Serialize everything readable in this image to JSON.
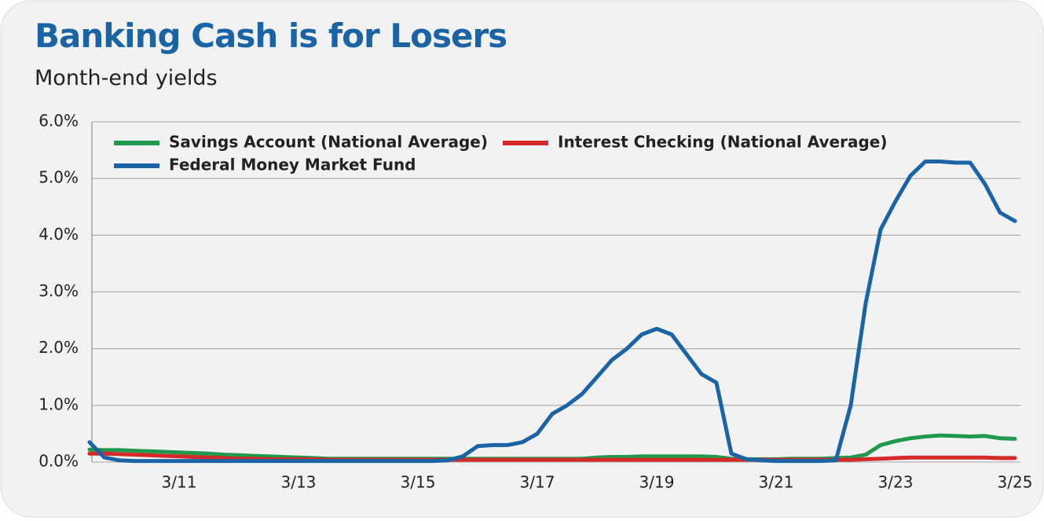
{
  "chart_data": {
    "type": "line",
    "title": "Banking Cash is for Losers",
    "subtitle": "Month-end yields",
    "categories": [
      null,
      null,
      null,
      null,
      null,
      null,
      "3/11",
      null,
      null,
      null,
      null,
      null,
      null,
      null,
      "3/13",
      null,
      null,
      null,
      null,
      null,
      null,
      null,
      "3/15",
      null,
      null,
      null,
      null,
      null,
      null,
      null,
      "3/17",
      null,
      null,
      null,
      null,
      null,
      null,
      null,
      "3/19",
      null,
      null,
      null,
      null,
      null,
      null,
      null,
      "3/21",
      null,
      null,
      null,
      null,
      null,
      null,
      null,
      "3/23",
      null,
      null,
      null,
      null,
      null,
      null,
      null,
      "3/25"
    ],
    "series": [
      {
        "name": "Savings Account (National Average)",
        "color": "#1f9a4c",
        "values": [
          0.22,
          0.21,
          0.21,
          0.2,
          0.19,
          0.18,
          0.17,
          0.16,
          0.15,
          0.13,
          0.12,
          0.11,
          0.1,
          0.09,
          0.08,
          0.07,
          0.06,
          0.06,
          0.06,
          0.06,
          0.06,
          0.06,
          0.06,
          0.06,
          0.06,
          0.06,
          0.06,
          0.06,
          0.06,
          0.06,
          0.06,
          0.06,
          0.06,
          0.06,
          0.08,
          0.09,
          0.09,
          0.1,
          0.1,
          0.1,
          0.1,
          0.1,
          0.09,
          0.06,
          0.05,
          0.05,
          0.05,
          0.06,
          0.06,
          0.06,
          0.07,
          0.08,
          0.13,
          0.3,
          0.37,
          0.42,
          0.45,
          0.47,
          0.46,
          0.45,
          0.46,
          0.42,
          0.41
        ]
      },
      {
        "name": "Interest Checking (National Average)",
        "color": "#d42a2a",
        "values": [
          0.15,
          0.15,
          0.14,
          0.13,
          0.12,
          0.11,
          0.1,
          0.09,
          0.08,
          0.07,
          0.06,
          0.06,
          0.05,
          0.05,
          0.05,
          0.05,
          0.04,
          0.04,
          0.04,
          0.04,
          0.04,
          0.04,
          0.04,
          0.04,
          0.04,
          0.04,
          0.04,
          0.04,
          0.04,
          0.04,
          0.04,
          0.04,
          0.04,
          0.04,
          0.04,
          0.04,
          0.04,
          0.04,
          0.04,
          0.04,
          0.04,
          0.04,
          0.04,
          0.04,
          0.04,
          0.04,
          0.04,
          0.04,
          0.04,
          0.04,
          0.04,
          0.04,
          0.05,
          0.06,
          0.07,
          0.08,
          0.08,
          0.08,
          0.08,
          0.08,
          0.08,
          0.07,
          0.07
        ]
      },
      {
        "name": "Federal Money Market Fund",
        "color": "#1a64a6",
        "values": [
          0.35,
          0.08,
          0.03,
          0.02,
          0.02,
          0.02,
          0.02,
          0.02,
          0.02,
          0.02,
          0.02,
          0.02,
          0.02,
          0.02,
          0.02,
          0.02,
          0.02,
          0.02,
          0.02,
          0.02,
          0.02,
          0.02,
          0.02,
          0.02,
          0.03,
          0.1,
          0.28,
          0.3,
          0.3,
          0.35,
          0.5,
          0.85,
          1.0,
          1.2,
          1.5,
          1.8,
          2.0,
          2.25,
          2.35,
          2.25,
          1.9,
          1.55,
          1.4,
          0.15,
          0.05,
          0.03,
          0.02,
          0.02,
          0.02,
          0.02,
          0.03,
          1.0,
          2.8,
          4.1,
          4.6,
          5.05,
          5.3,
          5.3,
          5.28,
          5.28,
          4.9,
          4.4,
          4.25
        ]
      }
    ],
    "ylim": [
      0,
      6
    ],
    "yticks": [
      {
        "value": 0,
        "label": "0.0%"
      },
      {
        "value": 1,
        "label": "1.0%"
      },
      {
        "value": 2,
        "label": "2.0%"
      },
      {
        "value": 3,
        "label": "3.0%"
      },
      {
        "value": 4,
        "label": "4.0%"
      },
      {
        "value": 5,
        "label": "5.0%"
      },
      {
        "value": 6,
        "label": "6.0%"
      }
    ],
    "grid": true
  }
}
